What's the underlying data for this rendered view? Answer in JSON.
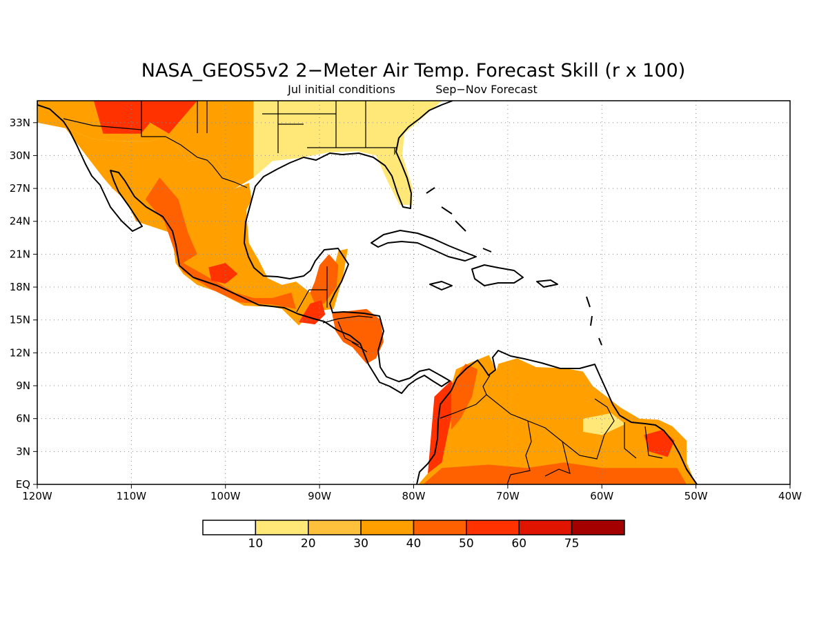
{
  "title": "NASA_GEOS5v2 2−Meter Air Temp. Forecast Skill (r x 100)",
  "subtitle_left": "Jul initial conditions",
  "subtitle_right": "Sep−Nov Forecast",
  "map": {
    "lon_range": [
      -120,
      -40
    ],
    "lat_range": [
      0,
      35
    ],
    "lon_ticks": [
      {
        "value": -120,
        "label": "120W"
      },
      {
        "value": -110,
        "label": "110W"
      },
      {
        "value": -100,
        "label": "100W"
      },
      {
        "value": -90,
        "label": "90W"
      },
      {
        "value": -80,
        "label": "80W"
      },
      {
        "value": -70,
        "label": "70W"
      },
      {
        "value": -60,
        "label": "60W"
      },
      {
        "value": -50,
        "label": "50W"
      },
      {
        "value": -40,
        "label": "40W"
      }
    ],
    "lat_ticks": [
      {
        "value": 0,
        "label": "EQ"
      },
      {
        "value": 3,
        "label": "3N"
      },
      {
        "value": 6,
        "label": "6N"
      },
      {
        "value": 9,
        "label": "9N"
      },
      {
        "value": 12,
        "label": "12N"
      },
      {
        "value": 15,
        "label": "15N"
      },
      {
        "value": 18,
        "label": "18N"
      },
      {
        "value": 21,
        "label": "21N"
      },
      {
        "value": 24,
        "label": "24N"
      },
      {
        "value": 27,
        "label": "27N"
      },
      {
        "value": 30,
        "label": "30N"
      },
      {
        "value": 33,
        "label": "33N"
      }
    ],
    "grid": true
  },
  "colorbar": {
    "colors": [
      "#ffffff",
      "#ffe878",
      "#ffc03c",
      "#ffa000",
      "#ff6000",
      "#ff3200",
      "#e11400",
      "#a50000"
    ],
    "labels": [
      "10",
      "20",
      "30",
      "40",
      "50",
      "60",
      "75"
    ]
  },
  "regions": [
    {
      "name": "usa-southwest",
      "level": 3,
      "pts": [
        [
          -120,
          35
        ],
        [
          -120,
          33
        ],
        [
          -117,
          32.5
        ],
        [
          -114,
          31.5
        ],
        [
          -111,
          31.3
        ],
        [
          -108,
          31.3
        ],
        [
          -106,
          31.8
        ],
        [
          -104,
          29.5
        ],
        [
          -101,
          29.8
        ],
        [
          -99,
          27
        ],
        [
          -97,
          28
        ],
        [
          -97,
          35
        ]
      ]
    },
    {
      "name": "usa-southwest-core",
      "level": 5,
      "pts": [
        [
          -114,
          35
        ],
        [
          -113,
          32
        ],
        [
          -109,
          32
        ],
        [
          -108,
          33
        ],
        [
          -106,
          32
        ],
        [
          -104,
          34
        ],
        [
          -103,
          35
        ]
      ]
    },
    {
      "name": "usa-southeast",
      "level": 1,
      "pts": [
        [
          -97,
          35
        ],
        [
          -97,
          28
        ],
        [
          -95,
          29.5
        ],
        [
          -92,
          29.8
        ],
        [
          -89,
          30.3
        ],
        [
          -86,
          30.4
        ],
        [
          -84,
          30
        ],
        [
          -82.7,
          27.5
        ],
        [
          -81.5,
          25.5
        ],
        [
          -80.2,
          25.5
        ],
        [
          -80.1,
          27
        ],
        [
          -81.2,
          30
        ],
        [
          -81,
          32
        ],
        [
          -79,
          33.5
        ],
        [
          -77,
          35
        ]
      ]
    },
    {
      "name": "mexico-north",
      "level": 3,
      "pts": [
        [
          -117,
          32.5
        ],
        [
          -114.8,
          30
        ],
        [
          -113,
          28
        ],
        [
          -112,
          27
        ],
        [
          -110.5,
          25.8
        ],
        [
          -109.5,
          24
        ],
        [
          -106,
          23
        ],
        [
          -105.5,
          21.5
        ],
        [
          -105.3,
          20.2
        ],
        [
          -104.5,
          19.2
        ],
        [
          -103,
          18.2
        ],
        [
          -101,
          17.6
        ],
        [
          -98,
          16.3
        ],
        [
          -95,
          16.2
        ],
        [
          -94,
          16
        ],
        [
          -92.2,
          14.5
        ],
        [
          -90.5,
          16
        ],
        [
          -90,
          17
        ],
        [
          -89,
          18
        ],
        [
          -88,
          21.3
        ],
        [
          -87,
          21.5
        ],
        [
          -87.5,
          19
        ],
        [
          -88.5,
          16
        ],
        [
          -89.5,
          15.9
        ],
        [
          -91,
          17.5
        ],
        [
          -92.5,
          18.5
        ],
        [
          -94,
          18.2
        ],
        [
          -95.5,
          18.8
        ],
        [
          -96.5,
          20.5
        ],
        [
          -97.5,
          22
        ],
        [
          -97.8,
          25
        ],
        [
          -97.2,
          26
        ],
        [
          -97.5,
          27.5
        ],
        [
          -99,
          27
        ],
        [
          -101,
          29.8
        ],
        [
          -104,
          29.5
        ],
        [
          -106,
          31.8
        ],
        [
          -108,
          31.3
        ],
        [
          -111,
          31.3
        ],
        [
          -114,
          31.5
        ]
      ]
    },
    {
      "name": "mexico-west-core",
      "level": 4,
      "pts": [
        [
          -107,
          28
        ],
        [
          -105,
          26
        ],
        [
          -104,
          23
        ],
        [
          -103,
          21
        ],
        [
          -104.5,
          20.2
        ],
        [
          -101,
          18.5
        ],
        [
          -99,
          17.5
        ],
        [
          -97,
          17
        ],
        [
          -95,
          17
        ],
        [
          -93,
          17.5
        ],
        [
          -92.5,
          16
        ],
        [
          -95,
          16.4
        ],
        [
          -98.5,
          16.6
        ],
        [
          -101.5,
          17.8
        ],
        [
          -104.5,
          19.4
        ],
        [
          -105.5,
          21.5
        ],
        [
          -106.5,
          24
        ],
        [
          -108.5,
          26
        ]
      ]
    },
    {
      "name": "mexico-central-hot",
      "level": 5,
      "pts": [
        [
          -101.8,
          19.8
        ],
        [
          -100,
          20.2
        ],
        [
          -98.7,
          19.2
        ],
        [
          -100,
          18.3
        ],
        [
          -101.5,
          18.6
        ]
      ]
    },
    {
      "name": "yucatan",
      "level": 4,
      "pts": [
        [
          -91,
          17.5
        ],
        [
          -90.5,
          18.5
        ],
        [
          -90,
          20
        ],
        [
          -89,
          21
        ],
        [
          -88,
          20
        ],
        [
          -88.2,
          18
        ],
        [
          -89.5,
          16.5
        ],
        [
          -90.5,
          16.5
        ]
      ]
    },
    {
      "name": "guatemala-core",
      "level": 5,
      "pts": [
        [
          -92.2,
          14.8
        ],
        [
          -91,
          16.5
        ],
        [
          -89.8,
          16.8
        ],
        [
          -89.4,
          15.5
        ],
        [
          -90.5,
          14.6
        ]
      ]
    },
    {
      "name": "central-america-east",
      "level": 4,
      "pts": [
        [
          -88.7,
          15.7
        ],
        [
          -87,
          15.8
        ],
        [
          -85,
          16
        ],
        [
          -83.5,
          15
        ],
        [
          -83.2,
          13
        ],
        [
          -84,
          11.5
        ],
        [
          -85,
          11
        ],
        [
          -86.5,
          12.5
        ],
        [
          -87.5,
          13
        ],
        [
          -88.3,
          14
        ]
      ]
    },
    {
      "name": "south-america",
      "level": 3,
      "pts": [
        [
          -79.5,
          0
        ],
        [
          -78,
          1.5
        ],
        [
          -77.6,
          3.5
        ],
        [
          -77.4,
          6.5
        ],
        [
          -77.3,
          8
        ],
        [
          -76,
          9
        ],
        [
          -75.5,
          10.5
        ],
        [
          -74,
          11.1
        ],
        [
          -72,
          11.8
        ],
        [
          -71,
          10
        ],
        [
          -71.5,
          9.5
        ],
        [
          -71,
          11
        ],
        [
          -69,
          11.5
        ],
        [
          -67,
          10.7
        ],
        [
          -64,
          10.6
        ],
        [
          -62,
          10.3
        ],
        [
          -61,
          9
        ],
        [
          -59.5,
          8
        ],
        [
          -58,
          7
        ],
        [
          -56,
          6
        ],
        [
          -54,
          5.9
        ],
        [
          -52.5,
          5.3
        ],
        [
          -51,
          4
        ],
        [
          -51,
          2
        ],
        [
          -50,
          0
        ]
      ]
    },
    {
      "name": "colombia-west-hot",
      "level": 5,
      "pts": [
        [
          -77.8,
          8
        ],
        [
          -76,
          9.5
        ],
        [
          -75.5,
          8
        ],
        [
          -76.3,
          5
        ],
        [
          -77,
          2
        ],
        [
          -78.5,
          1
        ]
      ]
    },
    {
      "name": "colombia-north-hot",
      "level": 4,
      "pts": [
        [
          -76,
          9
        ],
        [
          -74.5,
          11
        ],
        [
          -73.2,
          10.5
        ],
        [
          -73.8,
          8
        ],
        [
          -75,
          6
        ],
        [
          -76,
          5
        ]
      ]
    },
    {
      "name": "south-america-south",
      "level": 4,
      "pts": [
        [
          -79,
          0
        ],
        [
          -77,
          1.5
        ],
        [
          -72,
          1.8
        ],
        [
          -68,
          1.5
        ],
        [
          -64,
          2
        ],
        [
          -60,
          1.5
        ],
        [
          -56,
          1.5
        ],
        [
          -52,
          1.5
        ],
        [
          -51,
          0
        ]
      ]
    },
    {
      "name": "guianas-hot",
      "level": 5,
      "pts": [
        [
          -55.5,
          4.5
        ],
        [
          -53.5,
          5
        ],
        [
          -52.3,
          4
        ],
        [
          -53,
          2.5
        ],
        [
          -55,
          3
        ]
      ]
    },
    {
      "name": "venezuela-low",
      "level": 1,
      "pts": [
        [
          -62,
          6
        ],
        [
          -59,
          6.5
        ],
        [
          -57.5,
          5.5
        ],
        [
          -60,
          4.5
        ],
        [
          -62,
          4.8
        ]
      ]
    }
  ]
}
